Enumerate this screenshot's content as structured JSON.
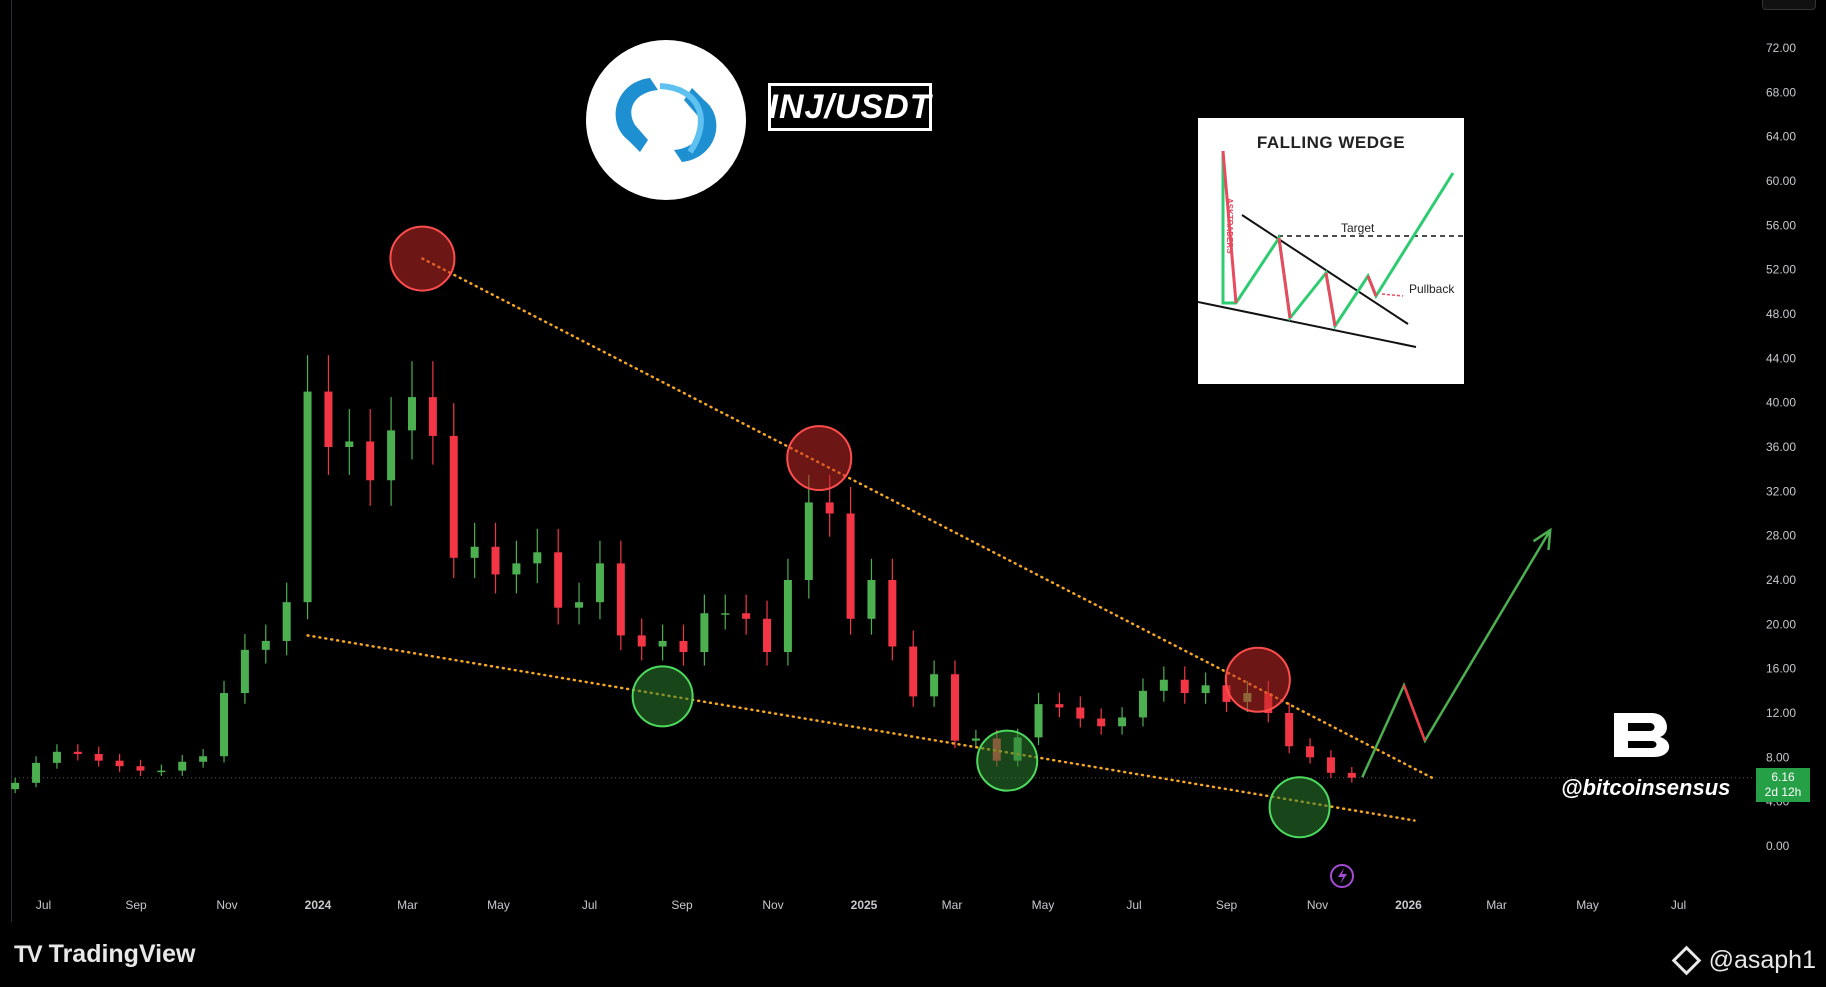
{
  "header": {
    "pair": "INJ/USDT"
  },
  "falling_wedge_inset": {
    "title": "FALLING WEDGE",
    "target_label": "Target",
    "pullback_label": "Pullback",
    "vertical_text": "ASKTRADERS"
  },
  "watermark": {
    "handle": "@bitcoinsensus"
  },
  "price_tag": {
    "price": "6.16",
    "countdown": "2d 12h"
  },
  "footer": {
    "brand": "TradingView",
    "author": "@asaph1"
  },
  "colors": {
    "background": "#000000",
    "up_candle": "#4caf50",
    "down_candle": "#f23645",
    "trendline": "#f5a623",
    "resistance_marker": "#c62828",
    "support_marker": "#2e7d32",
    "projection": "#4caf50"
  },
  "chart_data": {
    "type": "candlestick",
    "symbol": "INJ/USDT",
    "timeframe": "weekly",
    "y_axis": {
      "ticks": [
        0,
        4,
        8,
        12,
        16,
        20,
        24,
        28,
        32,
        36,
        40,
        44,
        48,
        52,
        56,
        60,
        64,
        68,
        72
      ],
      "tick_labels": [
        "0.00",
        "4.00",
        "8.00",
        "12.00",
        "16.00",
        "20.00",
        "24.00",
        "28.00",
        "32.00",
        "36.00",
        "40.00",
        "44.00",
        "48.00",
        "52.00",
        "56.00",
        "60.00",
        "64.00",
        "68.00",
        "72.00"
      ],
      "range": [
        -2,
        75
      ]
    },
    "x_axis": {
      "tick_labels": [
        "Jul",
        "Sep",
        "Nov",
        "2024",
        "Mar",
        "May",
        "Jul",
        "Sep",
        "Nov",
        "2025",
        "Mar",
        "May",
        "Jul",
        "Sep",
        "Nov",
        "2026",
        "Mar",
        "May",
        "Jul"
      ],
      "tick_months": [
        "2023-07",
        "2023-09",
        "2023-11",
        "2024-01",
        "2024-03",
        "2024-05",
        "2024-07",
        "2024-09",
        "2024-11",
        "2025-01",
        "2025-03",
        "2025-05",
        "2025-07",
        "2025-09",
        "2025-11",
        "2026-01",
        "2026-03",
        "2026-05",
        "2026-07"
      ]
    },
    "close_series": [
      {
        "date": "2023-06-12",
        "value": 5.7
      },
      {
        "date": "2023-06-26",
        "value": 7.5
      },
      {
        "date": "2023-07-10",
        "value": 8.5
      },
      {
        "date": "2023-07-24",
        "value": 8.3
      },
      {
        "date": "2023-08-07",
        "value": 7.7
      },
      {
        "date": "2023-08-21",
        "value": 7.2
      },
      {
        "date": "2023-09-04",
        "value": 6.8
      },
      {
        "date": "2023-09-18",
        "value": 6.8
      },
      {
        "date": "2023-10-02",
        "value": 7.6
      },
      {
        "date": "2023-10-16",
        "value": 8.1
      },
      {
        "date": "2023-10-30",
        "value": 13.8
      },
      {
        "date": "2023-11-13",
        "value": 17.7
      },
      {
        "date": "2023-11-27",
        "value": 18.5
      },
      {
        "date": "2023-12-11",
        "value": 22.0
      },
      {
        "date": "2023-12-25",
        "value": 41.0
      },
      {
        "date": "2024-01-08",
        "value": 36.0
      },
      {
        "date": "2024-01-22",
        "value": 36.5
      },
      {
        "date": "2024-02-05",
        "value": 33.0
      },
      {
        "date": "2024-02-19",
        "value": 37.5
      },
      {
        "date": "2024-03-04",
        "value": 40.5
      },
      {
        "date": "2024-03-18",
        "value": 37.0
      },
      {
        "date": "2024-04-01",
        "value": 26.0
      },
      {
        "date": "2024-04-15",
        "value": 27.0
      },
      {
        "date": "2024-04-29",
        "value": 24.5
      },
      {
        "date": "2024-05-13",
        "value": 25.5
      },
      {
        "date": "2024-05-27",
        "value": 26.5
      },
      {
        "date": "2024-06-10",
        "value": 21.5
      },
      {
        "date": "2024-06-24",
        "value": 22.0
      },
      {
        "date": "2024-07-08",
        "value": 25.5
      },
      {
        "date": "2024-07-22",
        "value": 19.0
      },
      {
        "date": "2024-08-05",
        "value": 18.0
      },
      {
        "date": "2024-08-19",
        "value": 18.5
      },
      {
        "date": "2024-09-02",
        "value": 17.5
      },
      {
        "date": "2024-09-16",
        "value": 21.0
      },
      {
        "date": "2024-09-30",
        "value": 21.0
      },
      {
        "date": "2024-10-14",
        "value": 20.5
      },
      {
        "date": "2024-10-28",
        "value": 17.5
      },
      {
        "date": "2024-11-11",
        "value": 24.0
      },
      {
        "date": "2024-11-25",
        "value": 31.0
      },
      {
        "date": "2024-12-09",
        "value": 30.0
      },
      {
        "date": "2024-12-23",
        "value": 20.5
      },
      {
        "date": "2025-01-06",
        "value": 24.0
      },
      {
        "date": "2025-01-20",
        "value": 18.0
      },
      {
        "date": "2025-02-03",
        "value": 13.5
      },
      {
        "date": "2025-02-17",
        "value": 15.5
      },
      {
        "date": "2025-03-03",
        "value": 9.5
      },
      {
        "date": "2025-03-17",
        "value": 9.7
      },
      {
        "date": "2025-03-31",
        "value": 7.7
      },
      {
        "date": "2025-04-14",
        "value": 9.8
      },
      {
        "date": "2025-04-28",
        "value": 12.8
      },
      {
        "date": "2025-05-12",
        "value": 12.5
      },
      {
        "date": "2025-05-26",
        "value": 11.5
      },
      {
        "date": "2025-06-09",
        "value": 10.8
      },
      {
        "date": "2025-06-23",
        "value": 11.6
      },
      {
        "date": "2025-07-07",
        "value": 14.0
      },
      {
        "date": "2025-07-21",
        "value": 15.0
      },
      {
        "date": "2025-08-04",
        "value": 13.8
      },
      {
        "date": "2025-08-18",
        "value": 14.5
      },
      {
        "date": "2025-09-01",
        "value": 13.0
      },
      {
        "date": "2025-09-15",
        "value": 13.8
      },
      {
        "date": "2025-09-29",
        "value": 12.0
      },
      {
        "date": "2025-10-13",
        "value": 9.0
      },
      {
        "date": "2025-10-27",
        "value": 8.0
      },
      {
        "date": "2025-11-10",
        "value": 6.6
      },
      {
        "date": "2025-11-24",
        "value": 6.16
      }
    ],
    "resistance_touches": [
      {
        "date": "2024-03-11",
        "value": 53.0
      },
      {
        "date": "2024-12-02",
        "value": 35.0
      },
      {
        "date": "2025-09-22",
        "value": 15.0
      }
    ],
    "support_touches": [
      {
        "date": "2024-08-19",
        "value": 13.5
      },
      {
        "date": "2025-04-07",
        "value": 7.7
      },
      {
        "date": "2025-10-20",
        "value": 3.5
      }
    ],
    "upper_trendline": [
      {
        "date": "2024-03-11",
        "value": 53.0
      },
      {
        "date": "2026-01-19",
        "value": 6.0
      }
    ],
    "lower_trendline": [
      {
        "date": "2023-12-25",
        "value": 19.0
      },
      {
        "date": "2026-01-05",
        "value": 2.3
      }
    ],
    "projection_path": [
      {
        "date": "2025-12-01",
        "value": 6.2
      },
      {
        "date": "2025-12-29",
        "value": 14.5
      },
      {
        "date": "2026-01-12",
        "value": 9.5
      },
      {
        "date": "2026-04-06",
        "value": 28.5
      }
    ],
    "current_price": 6.16
  }
}
